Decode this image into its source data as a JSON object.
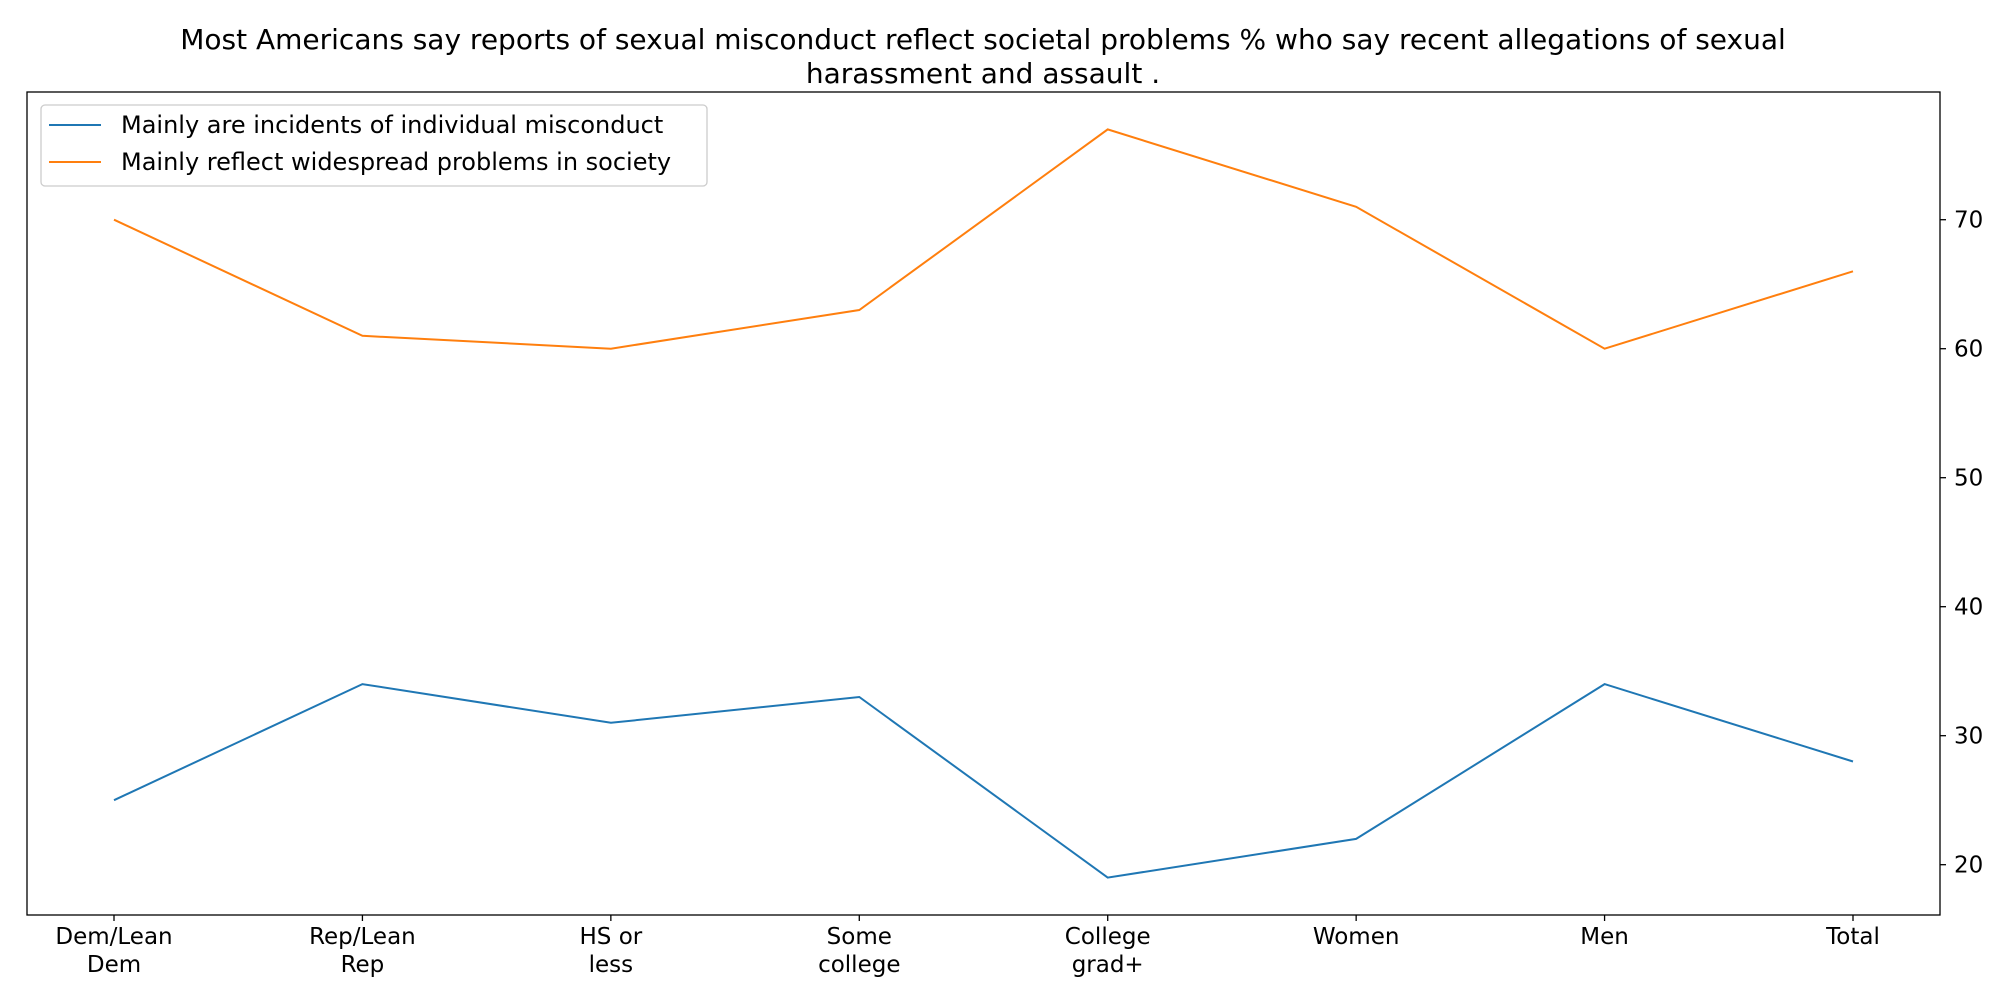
{
  "title_lines": [
    "Most Americans say reports of sexual misconduct reflect societal problems % who say recent allegations of sexual",
    "harassment and assault ."
  ],
  "chart_data": {
    "type": "line",
    "title": "Most Americans say reports of sexual misconduct reflect societal problems % who say recent allegations of sexual harassment and assault .",
    "categories": [
      [
        "Dem/Lean",
        "Dem"
      ],
      [
        "Rep/Lean",
        "Rep"
      ],
      [
        "HS or",
        "less"
      ],
      [
        "Some",
        "college"
      ],
      [
        "College",
        "grad+"
      ],
      [
        "Women"
      ],
      [
        "Men"
      ],
      [
        "Total"
      ]
    ],
    "series": [
      {
        "name": "Mainly are incidents of individual misconduct",
        "color": "#1f77b4",
        "values": [
          25,
          34,
          31,
          33,
          19,
          22,
          34,
          28
        ]
      },
      {
        "name": "Mainly reflect widespread problems in society",
        "color": "#ff7f0e",
        "values": [
          70,
          61,
          60,
          63,
          77,
          71,
          60,
          66
        ]
      }
    ],
    "y_axis_side": "right",
    "ylim": [
      16.1,
      79.9
    ],
    "yticks": [
      20,
      30,
      40,
      50,
      60,
      70
    ],
    "grid": false,
    "legend_position": "top-left"
  }
}
